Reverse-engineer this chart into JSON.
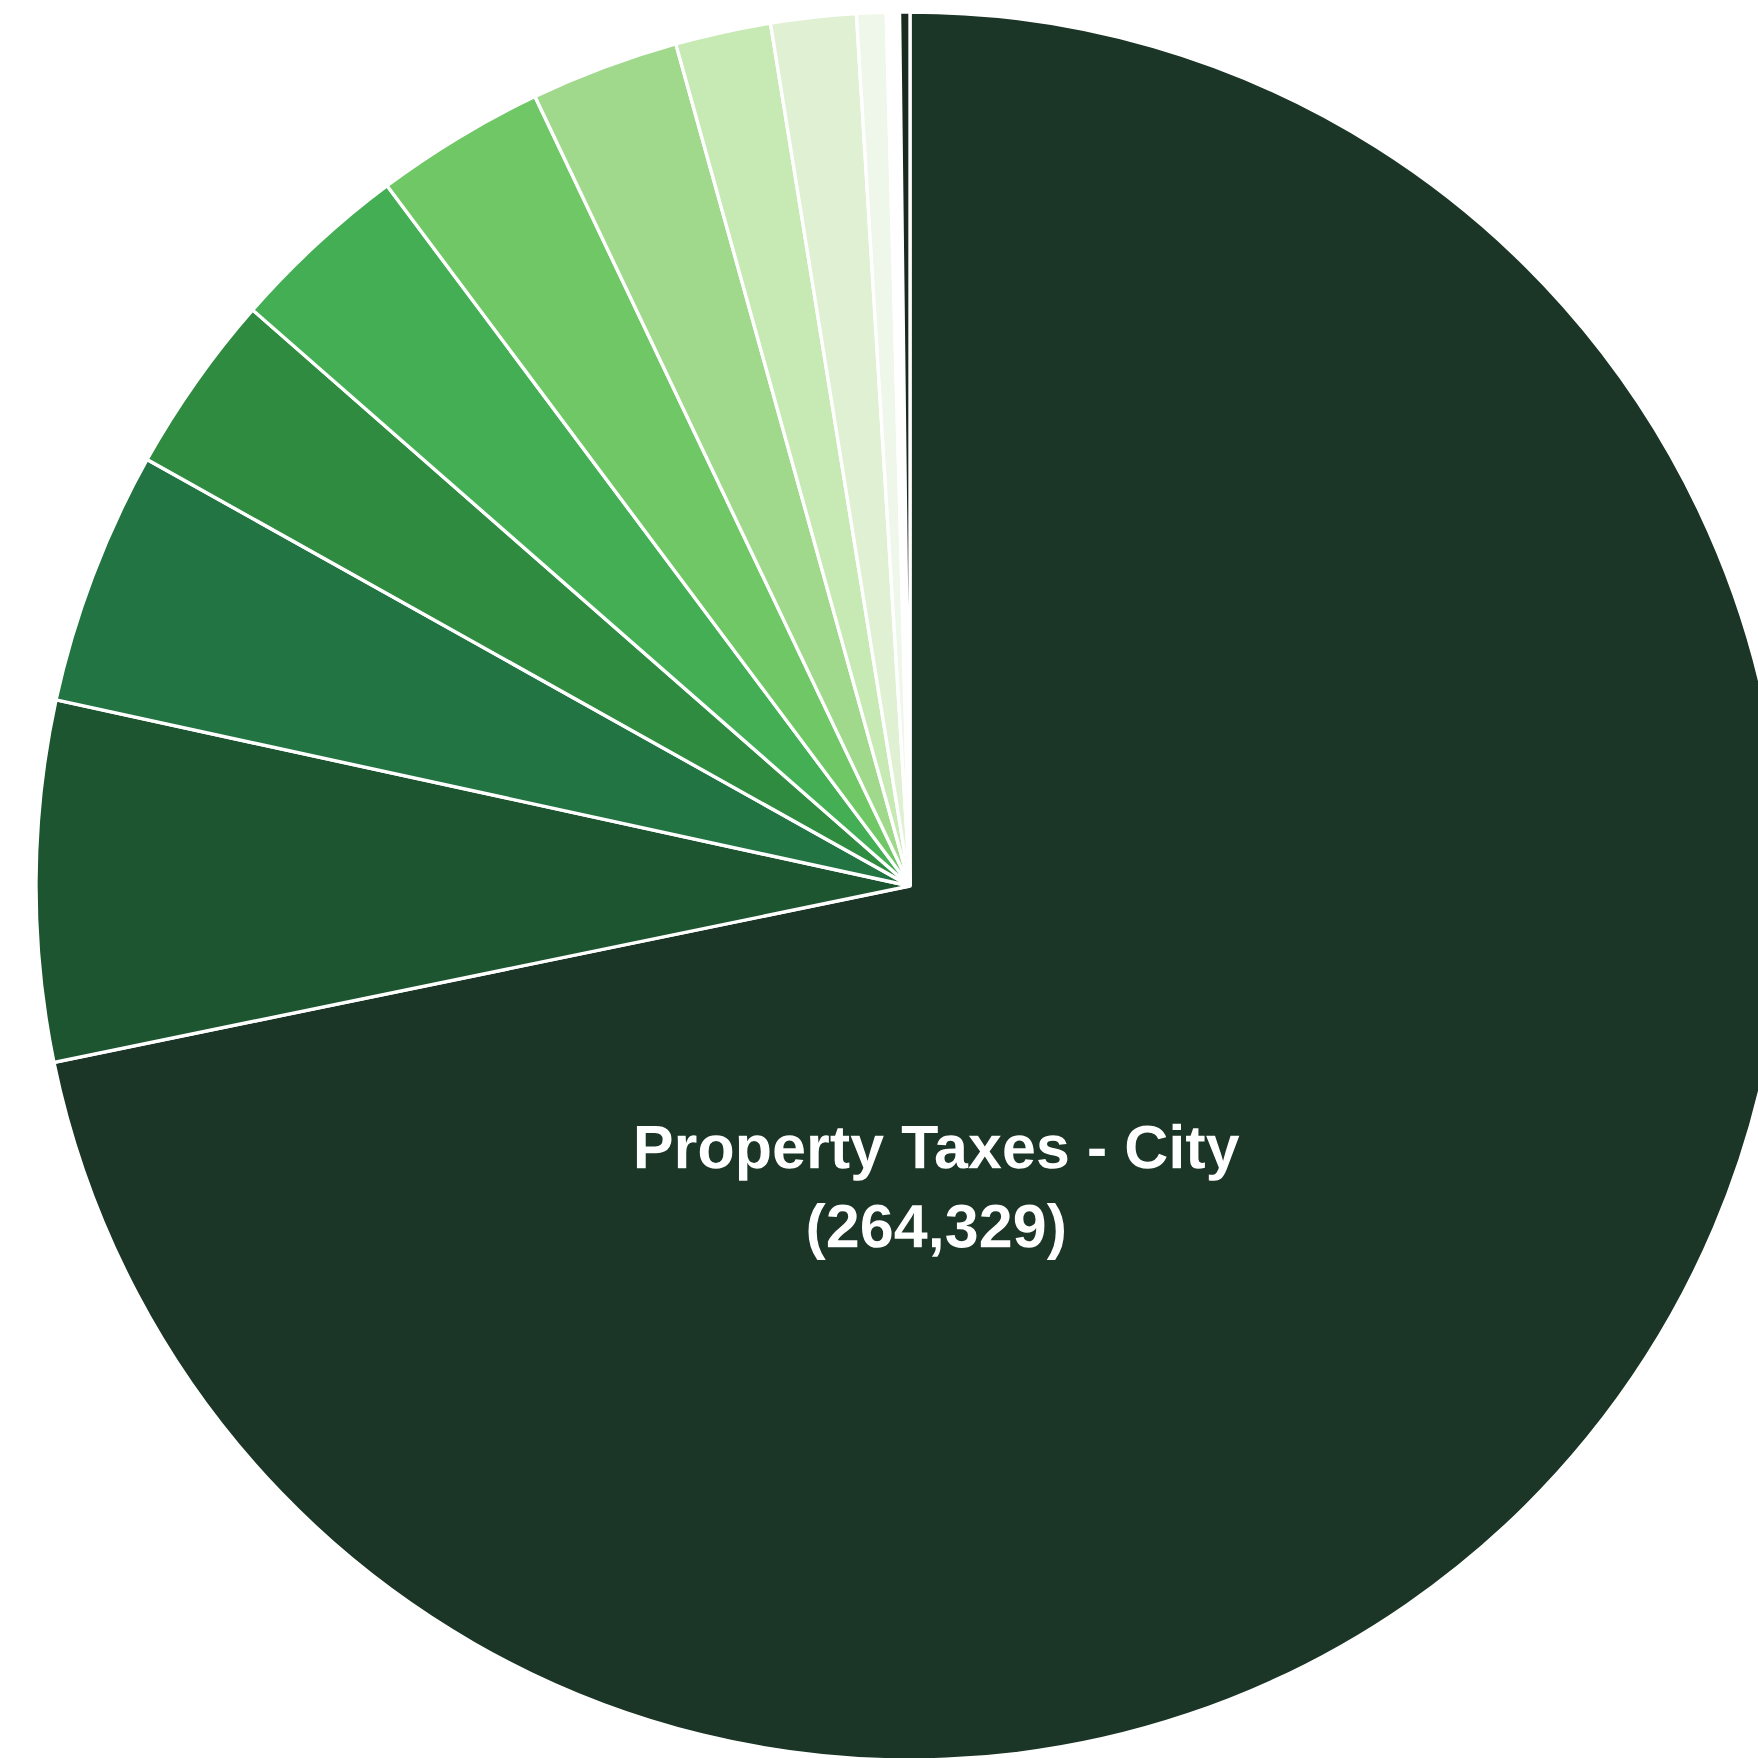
{
  "chart_data": {
    "type": "pie",
    "categories": [
      "Property Taxes - City",
      null,
      null,
      null,
      null,
      null,
      null,
      null,
      null,
      null,
      null,
      null
    ],
    "values": [
      264329,
      24500,
      17300,
      12300,
      12300,
      11600,
      10100,
      6500,
      5800,
      2000,
      900,
      700
    ],
    "colors": [
      "#1b3527",
      "#1d5530",
      "#237443",
      "#2f8b40",
      "#44ae55",
      "#6fc766",
      "#a0d98c",
      "#c7e9b4",
      "#dff0d3",
      "#eef7e9",
      "#ffffff",
      "#1a2a20"
    ],
    "value_labels": [
      "(264,329)",
      null,
      null,
      null,
      null,
      null,
      null,
      null,
      null,
      null,
      null,
      null
    ]
  }
}
